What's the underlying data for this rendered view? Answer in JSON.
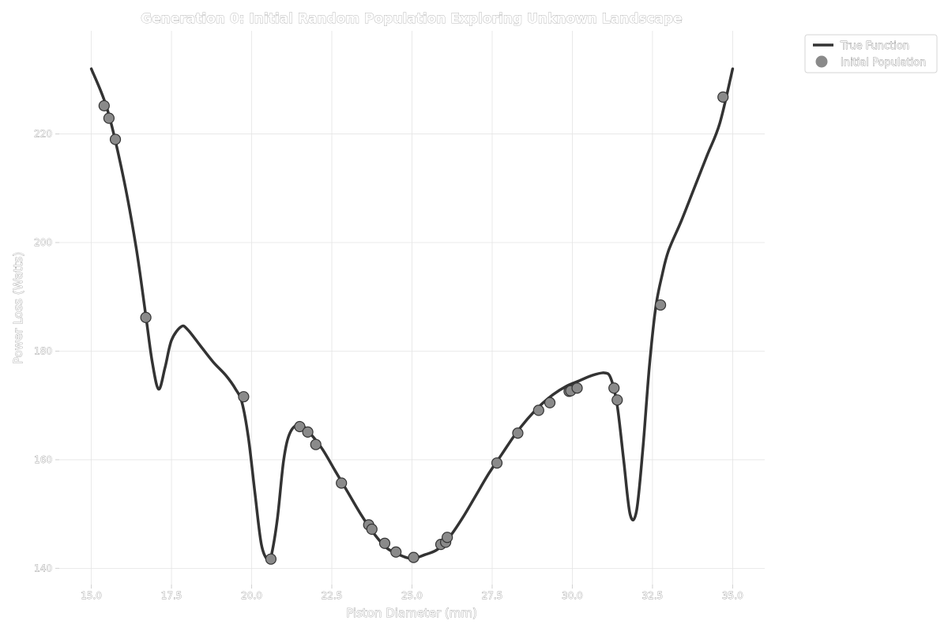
{
  "chart_data": {
    "type": "line",
    "title": "Generation 0: Initial Random Population Exploring Unknown Landscape",
    "xlabel": "Piston Diameter (mm)",
    "ylabel": "Power Loss (Watts)",
    "xlim": [
      14.0,
      36.0
    ],
    "ylim": [
      137.0,
      239.0
    ],
    "xticks": [
      "15.0",
      "17.5",
      "20.0",
      "22.5",
      "25.0",
      "27.5",
      "30.0",
      "32.5",
      "35.0"
    ],
    "yticks": [
      "140",
      "160",
      "180",
      "200",
      "220"
    ],
    "grid": true,
    "legend_position": "top-right-outside",
    "series": [
      {
        "name": "True Function",
        "kind": "line",
        "color": "#333333",
        "x": [
          15.0,
          15.5,
          16.0,
          16.4,
          16.7,
          16.9,
          17.1,
          17.3,
          17.5,
          17.8,
          18.0,
          18.4,
          18.8,
          19.2,
          19.5,
          19.7,
          19.9,
          20.1,
          20.3,
          20.5,
          20.6,
          20.8,
          21.0,
          21.2,
          21.5,
          21.8,
          22.2,
          22.6,
          23.0,
          23.4,
          23.8,
          24.2,
          24.6,
          25.0,
          25.4,
          25.8,
          26.2,
          26.6,
          27.0,
          27.4,
          27.8,
          28.2,
          28.6,
          29.0,
          29.4,
          29.8,
          30.2,
          30.6,
          31.0,
          31.2,
          31.4,
          31.6,
          31.8,
          32.0,
          32.2,
          32.4,
          32.6,
          32.8,
          33.0,
          33.4,
          33.8,
          34.2,
          34.6,
          35.0
        ],
        "y": [
          232.0,
          224.5,
          212.0,
          199.0,
          186.5,
          178.0,
          173.0,
          177.0,
          182.0,
          184.5,
          184.0,
          181.0,
          178.0,
          175.5,
          173.0,
          170.5,
          164.0,
          154.0,
          144.5,
          141.5,
          142.0,
          149.0,
          160.0,
          165.0,
          166.5,
          165.0,
          162.0,
          158.0,
          154.0,
          150.0,
          146.5,
          143.8,
          142.5,
          141.8,
          142.5,
          143.5,
          146.0,
          149.5,
          153.5,
          157.5,
          161.0,
          164.5,
          167.5,
          170.0,
          172.0,
          173.5,
          174.5,
          175.5,
          176.0,
          175.0,
          170.0,
          160.0,
          150.0,
          150.5,
          162.0,
          177.0,
          188.0,
          194.0,
          198.5,
          204.0,
          210.0,
          216.0,
          222.0,
          232.0
        ]
      },
      {
        "name": "Initial Population",
        "kind": "scatter",
        "color": "#8a8a8a",
        "x": [
          15.4,
          15.55,
          15.75,
          16.7,
          19.75,
          20.6,
          21.5,
          21.75,
          22.0,
          22.8,
          23.65,
          23.75,
          24.15,
          24.5,
          25.05,
          25.9,
          26.05,
          26.1,
          27.65,
          28.3,
          28.95,
          29.3,
          29.9,
          29.95,
          30.15,
          31.3,
          31.4,
          32.75,
          34.7
        ],
        "y": [
          225.2,
          222.9,
          219.0,
          186.2,
          171.6,
          141.7,
          166.1,
          165.1,
          162.8,
          155.7,
          148.0,
          147.2,
          144.6,
          143.0,
          142.0,
          144.4,
          144.8,
          145.7,
          159.4,
          164.9,
          169.1,
          170.5,
          172.6,
          172.7,
          173.2,
          173.2,
          171.0,
          188.5,
          226.8
        ]
      }
    ]
  }
}
